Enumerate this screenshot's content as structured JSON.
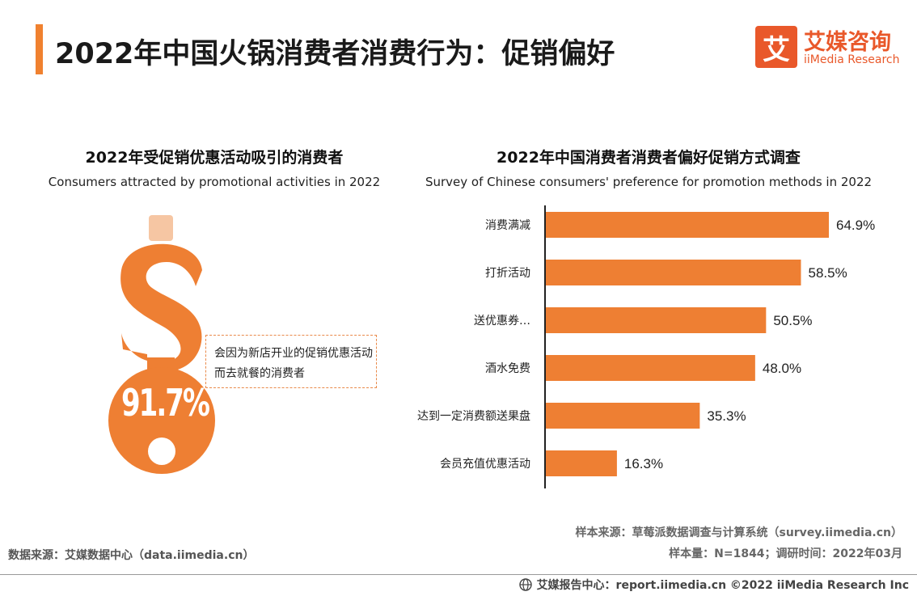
{
  "header": {
    "title": "2022年中国火锅消费者消费行为：促销偏好",
    "accent_color": "#F0812F"
  },
  "logo": {
    "mark": "艾",
    "name_cn": "艾媒咨询",
    "name_en": "iiMedia Research",
    "color": "#E9582A"
  },
  "left_panel": {
    "title_cn": "2022年受促销优惠活动吸引的消费者",
    "title_en": "Consumers attracted by promotional activities in 2022",
    "value_label": "91.7%",
    "value": 91.7,
    "callout": "会因为新店开业的促销优惠活动而去就餐的消费者",
    "icon": "money-bag-dollar-icon"
  },
  "right_panel": {
    "title_cn": "2022年中国消费者消费者偏好促销方式调查",
    "title_en": "Survey of Chinese consumers' preference for promotion methods in 2022"
  },
  "chart_data": {
    "type": "bar",
    "orientation": "horizontal",
    "title": "2022年中国消费者消费者偏好促销方式调查",
    "categories": [
      "消费满减",
      "打折活动",
      "送优惠券…",
      "酒水免费",
      "达到一定消费额送果盘",
      "会员充值优惠活动"
    ],
    "values": [
      64.9,
      58.5,
      50.5,
      48.0,
      35.3,
      16.3
    ],
    "value_labels": [
      "64.9%",
      "58.5%",
      "50.5%",
      "48.0%",
      "35.3%",
      "16.3%"
    ],
    "unit": "%",
    "xlim": [
      0,
      70
    ],
    "bar_color": "#EE7F33",
    "grid": false
  },
  "sources": {
    "data_source": "数据来源：艾媒数据中心（data.iimedia.cn）",
    "sample_source": "样本来源：草莓派数据调查与计算系统（survey.iimedia.cn）",
    "sample_size": "样本量：N=1844；调研时间：2022年03月"
  },
  "footer": {
    "text": "艾媒报告中心：report.iimedia.cn  ©2022  iiMedia Research  Inc",
    "icon": "globe-icon"
  }
}
